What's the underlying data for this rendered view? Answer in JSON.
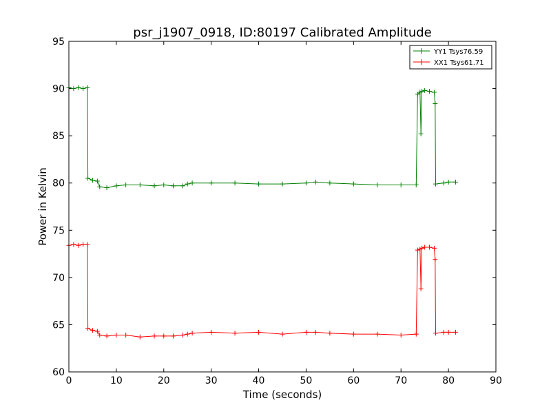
{
  "colors": {
    "green": "#008000",
    "red": "#ff0000"
  },
  "chart_data": {
    "type": "line",
    "title": "psr_j1907_0918, ID:80197 Calibrated Amplitude",
    "xlabel": "Time (seconds)",
    "ylabel": "Power in Kelvin",
    "xlim": [
      0,
      90
    ],
    "ylim": [
      60,
      95
    ],
    "xticks": [
      0,
      10,
      20,
      30,
      40,
      50,
      60,
      70,
      80,
      90
    ],
    "yticks": [
      60,
      65,
      70,
      75,
      80,
      85,
      90,
      95
    ],
    "grid": false,
    "legend_position": "top-right",
    "series": [
      {
        "name": "YY1 Tsys76.59",
        "color": "#008000",
        "points": [
          [
            0.0,
            90.1
          ],
          [
            1.0,
            90.0
          ],
          [
            2.0,
            90.1
          ],
          [
            3.0,
            90.0
          ],
          [
            3.9,
            90.1
          ],
          [
            4.0,
            80.5
          ],
          [
            5.0,
            80.3
          ],
          [
            6.0,
            80.2
          ],
          [
            6.5,
            79.6
          ],
          [
            8.0,
            79.5
          ],
          [
            10.0,
            79.7
          ],
          [
            12.0,
            79.8
          ],
          [
            15.0,
            79.8
          ],
          [
            18.0,
            79.7
          ],
          [
            20.0,
            79.8
          ],
          [
            22.0,
            79.7
          ],
          [
            24.0,
            79.7
          ],
          [
            25.0,
            79.9
          ],
          [
            26.0,
            80.0
          ],
          [
            30.0,
            80.0
          ],
          [
            35.0,
            80.0
          ],
          [
            40.0,
            79.9
          ],
          [
            45.0,
            79.9
          ],
          [
            50.0,
            80.0
          ],
          [
            52.0,
            80.1
          ],
          [
            55.0,
            80.0
          ],
          [
            60.0,
            79.9
          ],
          [
            65.0,
            79.8
          ],
          [
            70.0,
            79.8
          ],
          [
            73.2,
            79.8
          ],
          [
            73.5,
            89.4
          ],
          [
            74.0,
            89.6
          ],
          [
            74.2,
            85.2
          ],
          [
            74.4,
            89.7
          ],
          [
            75.0,
            89.8
          ],
          [
            76.0,
            89.7
          ],
          [
            77.0,
            89.6
          ],
          [
            77.2,
            88.4
          ],
          [
            77.3,
            79.9
          ],
          [
            79.0,
            80.0
          ],
          [
            80.0,
            80.1
          ],
          [
            81.5,
            80.1
          ]
        ]
      },
      {
        "name": "XX1 Tsys61.71",
        "color": "#ff0000",
        "points": [
          [
            0.0,
            73.4
          ],
          [
            1.0,
            73.5
          ],
          [
            2.0,
            73.4
          ],
          [
            3.0,
            73.5
          ],
          [
            3.9,
            73.5
          ],
          [
            4.0,
            64.6
          ],
          [
            5.0,
            64.4
          ],
          [
            6.0,
            64.3
          ],
          [
            6.5,
            63.9
          ],
          [
            8.0,
            63.8
          ],
          [
            10.0,
            63.9
          ],
          [
            12.0,
            63.9
          ],
          [
            15.0,
            63.7
          ],
          [
            18.0,
            63.8
          ],
          [
            20.0,
            63.8
          ],
          [
            22.0,
            63.8
          ],
          [
            24.0,
            63.9
          ],
          [
            25.0,
            64.0
          ],
          [
            26.0,
            64.1
          ],
          [
            30.0,
            64.2
          ],
          [
            35.0,
            64.1
          ],
          [
            40.0,
            64.2
          ],
          [
            45.0,
            64.0
          ],
          [
            50.0,
            64.2
          ],
          [
            52.0,
            64.2
          ],
          [
            55.0,
            64.1
          ],
          [
            60.0,
            64.0
          ],
          [
            65.0,
            64.0
          ],
          [
            70.0,
            63.9
          ],
          [
            73.2,
            64.0
          ],
          [
            73.5,
            72.9
          ],
          [
            74.0,
            73.0
          ],
          [
            74.2,
            68.8
          ],
          [
            74.4,
            73.1
          ],
          [
            75.0,
            73.2
          ],
          [
            76.0,
            73.2
          ],
          [
            77.0,
            73.1
          ],
          [
            77.2,
            71.9
          ],
          [
            77.3,
            64.1
          ],
          [
            79.0,
            64.2
          ],
          [
            80.0,
            64.2
          ],
          [
            81.5,
            64.2
          ]
        ]
      }
    ]
  }
}
